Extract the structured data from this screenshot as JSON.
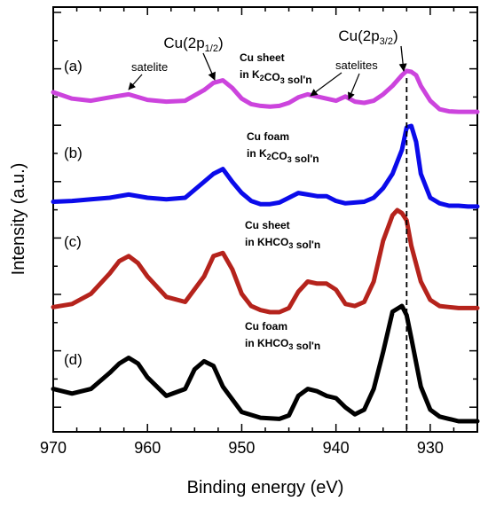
{
  "chart_data": {
    "type": "line",
    "xlabel": "Binding energy (eV)",
    "ylabel": "Intensity (a.u.)",
    "xlim": [
      970,
      925
    ],
    "x_reversed": true,
    "x_ticks": [
      970,
      960,
      950,
      940,
      930
    ],
    "grid": false,
    "peak_labels": [
      {
        "main": "Cu(2p",
        "sub": "1/2",
        "close": ")",
        "x": 951.5
      },
      {
        "main": "Cu(2p",
        "sub": "3/2",
        "close": ")",
        "x": 932.5
      }
    ],
    "dashed_line_x": 932.5,
    "satellite_label_left": "satelite",
    "satellite_label_right": "satelites",
    "series": [
      {
        "panel": "(a)",
        "line1": "Cu sheet",
        "line2_pre": "in K",
        "line2_sub": "2",
        "line2_mid": "CO",
        "line2_sub2": "3",
        "line2_post": " sol'n",
        "color": "#cc44dd",
        "offset": 0.7,
        "scale": 0.55,
        "x": [
          970,
          968,
          966,
          964,
          962,
          960,
          958,
          956,
          954,
          953,
          952,
          951,
          950,
          949,
          948,
          947,
          946,
          945,
          944,
          943,
          942,
          941,
          940,
          939,
          938,
          937,
          936,
          935,
          934,
          933,
          932.5,
          932,
          931.5,
          931,
          930,
          929,
          928,
          927,
          926,
          925
        ],
        "y": [
          0.5,
          0.35,
          0.3,
          0.38,
          0.45,
          0.32,
          0.28,
          0.3,
          0.55,
          0.72,
          0.78,
          0.6,
          0.35,
          0.22,
          0.18,
          0.16,
          0.18,
          0.25,
          0.38,
          0.45,
          0.4,
          0.35,
          0.3,
          0.4,
          0.28,
          0.25,
          0.3,
          0.45,
          0.65,
          0.9,
          1.0,
          0.98,
          0.9,
          0.65,
          0.3,
          0.1,
          0.05,
          0.04,
          0.04,
          0.04
        ]
      },
      {
        "panel": "(b)",
        "line1": "Cu foam",
        "line2_pre": "in K",
        "line2_sub": "2",
        "line2_mid": "CO",
        "line2_sub2": "3",
        "line2_post": " sol'n",
        "color": "#0b0bea",
        "offset": 0.5,
        "scale": 0.75,
        "x": [
          970,
          968,
          966,
          964,
          962,
          960,
          958,
          956,
          954,
          953,
          952,
          951,
          950,
          949,
          948,
          947,
          946,
          945,
          944,
          943,
          942,
          941,
          940,
          939,
          938,
          937,
          936,
          935,
          934,
          933,
          932.5,
          932,
          931.5,
          931,
          930,
          929,
          928,
          927,
          926,
          925
        ],
        "y": [
          0.05,
          0.06,
          0.08,
          0.1,
          0.14,
          0.1,
          0.08,
          0.1,
          0.3,
          0.4,
          0.46,
          0.3,
          0.16,
          0.06,
          0.02,
          0.02,
          0.04,
          0.1,
          0.16,
          0.14,
          0.12,
          0.12,
          0.06,
          0.03,
          0.04,
          0.05,
          0.1,
          0.22,
          0.4,
          0.7,
          0.98,
          1.0,
          0.8,
          0.4,
          0.1,
          0.03,
          0.0,
          0.0,
          -0.01,
          -0.01
        ]
      },
      {
        "panel": "(c)",
        "line1": "Cu sheet",
        "line2_pre": "in KHCO",
        "line2_sub": "3",
        "line2_mid": "",
        "line2_sub2": "",
        "line2_post": " sol'n",
        "color": "#b5231c",
        "offset": 0.3,
        "scale": 0.9,
        "x": [
          970,
          968,
          966,
          964,
          963,
          962,
          961,
          960,
          958,
          956,
          954,
          953,
          952,
          951,
          950,
          949,
          948,
          947,
          946,
          945,
          944,
          943,
          942,
          941,
          940,
          939,
          938,
          937,
          936,
          935,
          934,
          933.5,
          933,
          932.5,
          932,
          931,
          930,
          929,
          928,
          927,
          926,
          925
        ],
        "y": [
          0.05,
          0.08,
          0.18,
          0.38,
          0.5,
          0.55,
          0.48,
          0.35,
          0.15,
          0.1,
          0.35,
          0.55,
          0.58,
          0.42,
          0.18,
          0.06,
          0.02,
          0.0,
          0.0,
          0.04,
          0.2,
          0.3,
          0.28,
          0.28,
          0.22,
          0.08,
          0.06,
          0.1,
          0.3,
          0.7,
          0.95,
          1.0,
          0.97,
          0.9,
          0.65,
          0.3,
          0.12,
          0.06,
          0.05,
          0.04,
          0.04,
          0.04
        ]
      },
      {
        "panel": "(d)",
        "line1": "Cu foam",
        "line2_pre": "in KHCO",
        "line2_sub": "3",
        "line2_mid": "",
        "line2_sub2": "",
        "line2_post": " sol'n",
        "color": "#000000",
        "offset": 0.0,
        "scale": 1.0,
        "x": [
          970,
          968,
          966,
          964,
          963,
          962,
          961,
          960,
          958,
          956,
          955,
          954,
          953,
          952,
          950,
          948,
          946,
          945,
          944,
          943,
          942,
          941,
          940,
          939,
          938,
          937,
          936,
          935,
          934,
          933,
          932.5,
          932,
          931,
          930,
          929,
          928,
          927,
          926,
          925
        ],
        "y": [
          0.28,
          0.24,
          0.28,
          0.42,
          0.5,
          0.55,
          0.5,
          0.38,
          0.22,
          0.28,
          0.45,
          0.52,
          0.48,
          0.3,
          0.08,
          0.03,
          0.02,
          0.05,
          0.22,
          0.28,
          0.26,
          0.22,
          0.2,
          0.12,
          0.06,
          0.1,
          0.28,
          0.6,
          0.95,
          1.0,
          0.92,
          0.72,
          0.3,
          0.1,
          0.04,
          0.02,
          0.0,
          0.0,
          0.0
        ]
      }
    ]
  }
}
